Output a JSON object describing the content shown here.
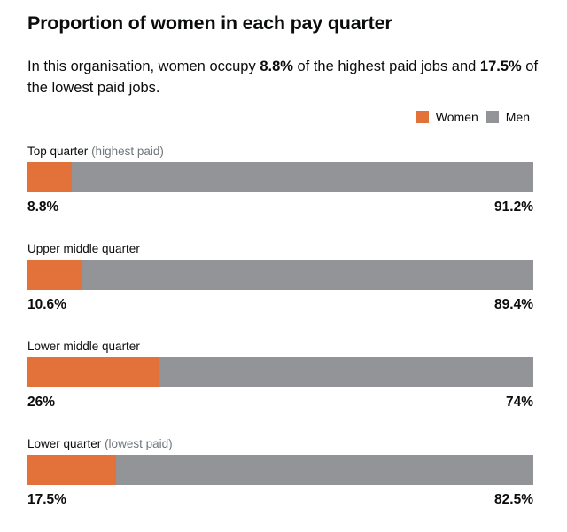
{
  "header": {
    "title": "Proportion of women in each pay quarter",
    "summary_pre": "In this organisation, women occupy ",
    "summary_high": "8.8%",
    "summary_mid": " of the highest paid jobs and ",
    "summary_low": "17.5%",
    "summary_post": " of the lowest paid jobs."
  },
  "colors": {
    "women": "#e27239",
    "men": "#939497"
  },
  "chart_data": {
    "type": "bar",
    "orientation": "horizontal-stacked-100",
    "title": "Proportion of women in each pay quarter",
    "legend": [
      "Women",
      "Men"
    ],
    "legend_position": "top-right",
    "categories": [
      "Top quarter (highest paid)",
      "Upper middle quarter",
      "Lower middle quarter",
      "Lower quarter (lowest paid)"
    ],
    "rows": [
      {
        "label": "Top quarter",
        "sublabel": "(highest paid)",
        "women": 8.8,
        "men": 91.2,
        "women_label": "8.8%",
        "men_label": "91.2%"
      },
      {
        "label": "Upper middle quarter",
        "sublabel": "",
        "women": 10.6,
        "men": 89.4,
        "women_label": "10.6%",
        "men_label": "89.4%"
      },
      {
        "label": "Lower middle quarter",
        "sublabel": "",
        "women": 26,
        "men": 74,
        "women_label": "26%",
        "men_label": "74%"
      },
      {
        "label": "Lower quarter",
        "sublabel": "(lowest paid)",
        "women": 17.5,
        "men": 82.5,
        "women_label": "17.5%",
        "men_label": "82.5%"
      }
    ],
    "series": [
      {
        "name": "Women",
        "values": [
          8.8,
          10.6,
          26,
          17.5
        ]
      },
      {
        "name": "Men",
        "values": [
          91.2,
          89.4,
          74,
          82.5
        ]
      }
    ],
    "xlim": [
      0,
      100
    ],
    "grid": false
  }
}
